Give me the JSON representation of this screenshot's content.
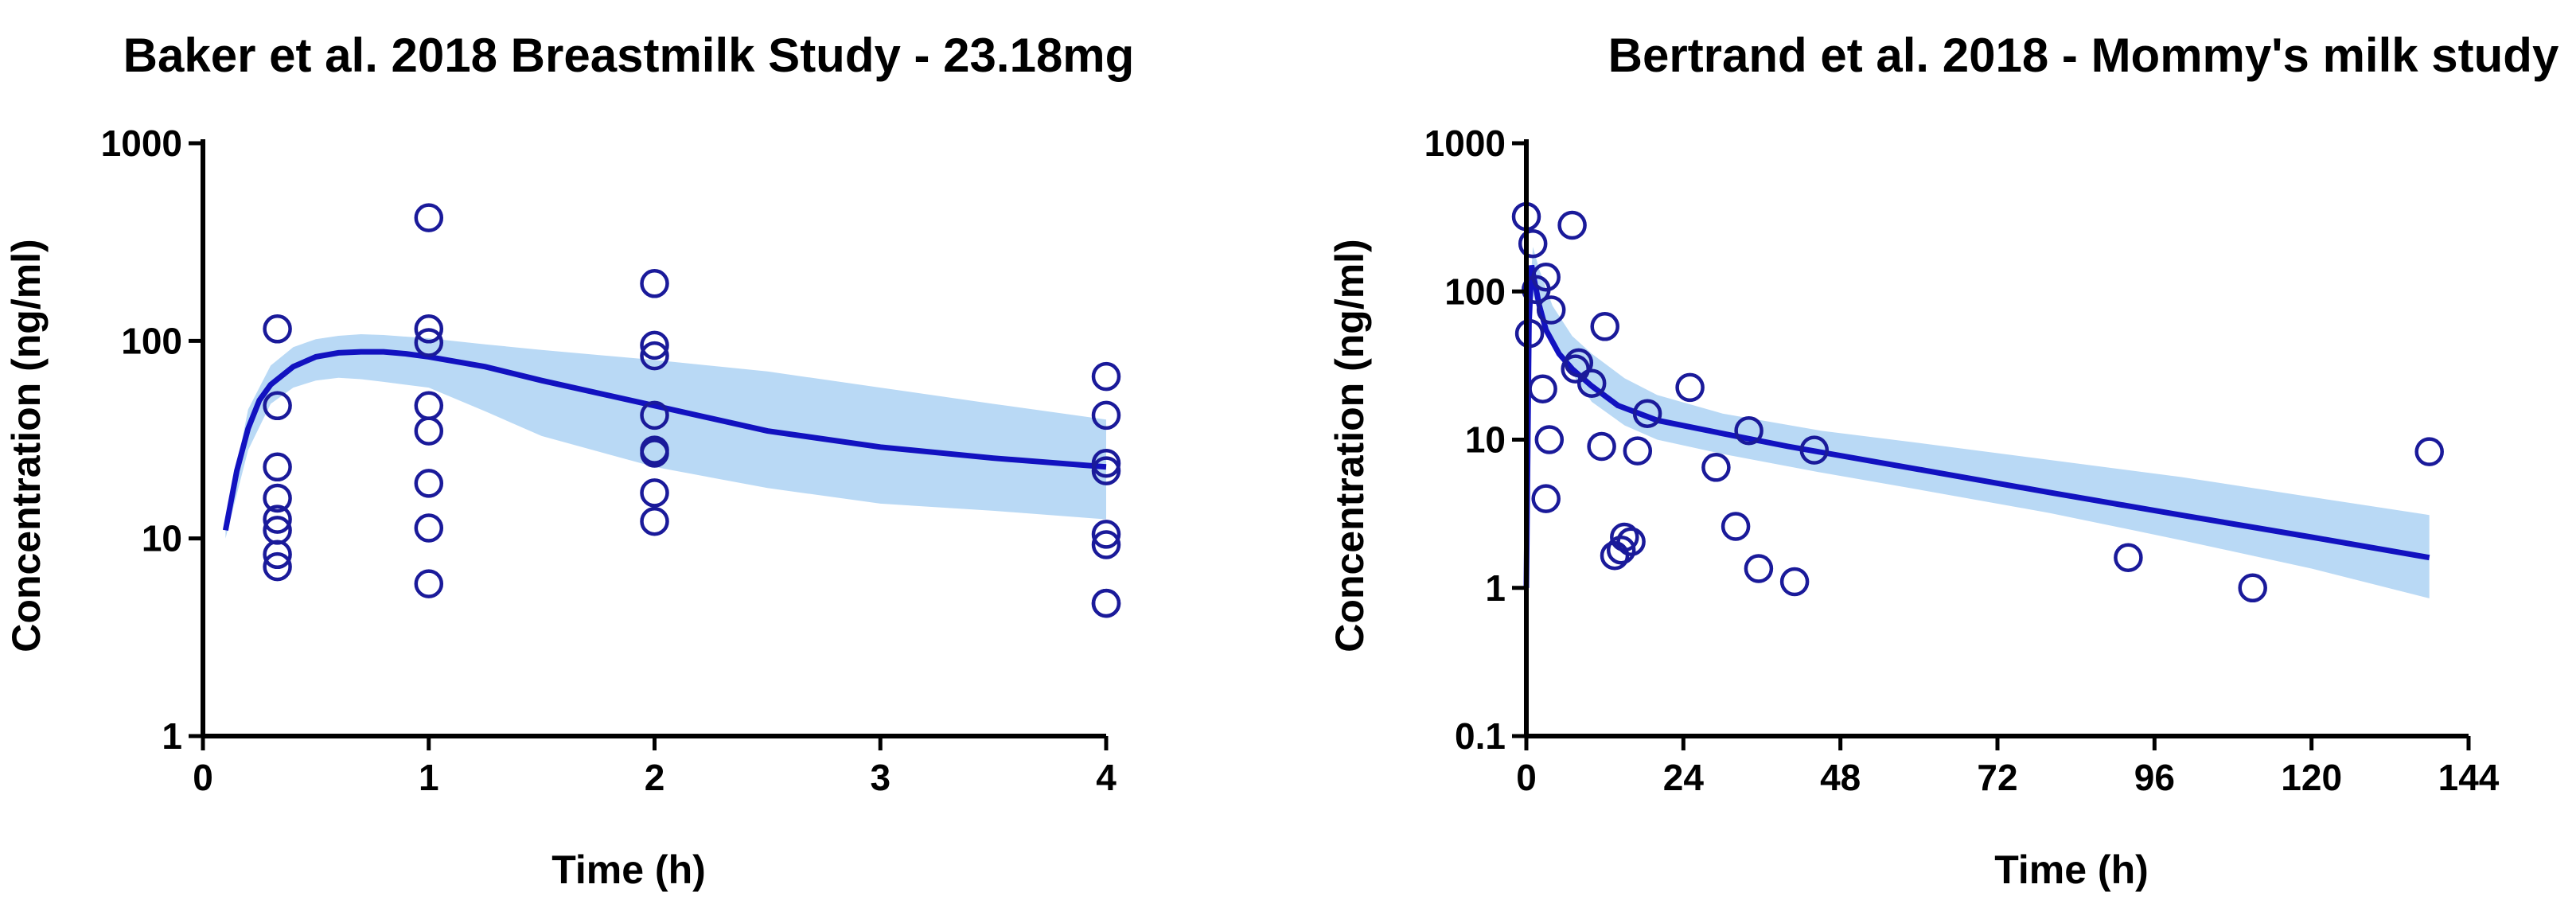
{
  "colors": {
    "band": "#b9d9f5",
    "median": "#1212c0",
    "observations": "#1a1a9a"
  },
  "chart_data": [
    {
      "type": "scatter",
      "title": "Baker et al. 2018 Breastmilk Study - 23.18mg",
      "xlabel": "Time (h)",
      "ylabel": "Concentration (ng/ml)",
      "xscale": "linear",
      "yscale": "log",
      "xlim": [
        0,
        4
      ],
      "ylim": [
        1,
        1000
      ],
      "xticks": [
        0,
        1,
        2,
        3,
        4
      ],
      "xtick_labels": [
        "0",
        "1",
        "2",
        "3",
        "4"
      ],
      "yticks": [
        1,
        10,
        100,
        1000
      ],
      "ytick_labels": [
        "1",
        "10",
        "100",
        "1000"
      ],
      "grid": false,
      "legend": "none",
      "observations": {
        "x": [
          0.33,
          0.33,
          0.33,
          0.33,
          0.33,
          0.33,
          0.33,
          0.33,
          1,
          1,
          1,
          1,
          1,
          1,
          1,
          1,
          2,
          2,
          2,
          2,
          2,
          2,
          2,
          2,
          4,
          4,
          4,
          4,
          4,
          4,
          4,
          4
        ],
        "y": [
          115,
          47,
          23,
          16,
          12.5,
          11,
          8.3,
          7.2,
          420,
          115,
          98,
          47,
          35,
          19,
          11.3,
          5.9,
          195,
          95,
          84,
          42,
          28,
          27,
          17,
          12.2,
          66,
          42,
          24,
          22,
          10.5,
          9.3,
          4.7,
          4.7
        ]
      },
      "median": {
        "x": [
          0.1,
          0.15,
          0.2,
          0.25,
          0.3,
          0.4,
          0.5,
          0.6,
          0.7,
          0.8,
          0.9,
          1,
          1.25,
          1.5,
          2,
          2.5,
          3,
          3.5,
          4
        ],
        "y": [
          11,
          22,
          36,
          50,
          60,
          74,
          83,
          87,
          88,
          88,
          86,
          83,
          74,
          63,
          47,
          35,
          29,
          25.5,
          23
        ]
      },
      "band_upper": {
        "x": [
          0.1,
          0.2,
          0.3,
          0.4,
          0.5,
          0.6,
          0.7,
          0.8,
          1,
          1.25,
          1.5,
          2,
          2.5,
          3,
          3.5,
          4
        ],
        "y": [
          12,
          45,
          75,
          93,
          102,
          106,
          108,
          107,
          103,
          96,
          90,
          80,
          70,
          58,
          48,
          40
        ]
      },
      "band_lower": {
        "x": [
          0.1,
          0.2,
          0.3,
          0.4,
          0.5,
          0.6,
          0.7,
          0.8,
          1,
          1.25,
          1.5,
          2,
          2.5,
          3,
          3.5,
          4
        ],
        "y": [
          10,
          28,
          48,
          58,
          63,
          65,
          64,
          62,
          58,
          44,
          33,
          23,
          18,
          15,
          13.8,
          12.5
        ]
      }
    },
    {
      "type": "scatter",
      "title": "Bertrand et al. 2018 - Mommy's milk study",
      "xlabel": "Time (h)",
      "ylabel": "Concentration (ng/ml)",
      "xscale": "linear",
      "yscale": "log",
      "xlim": [
        0,
        144
      ],
      "ylim": [
        0.1,
        1000
      ],
      "xticks": [
        0,
        24,
        48,
        72,
        96,
        120,
        144
      ],
      "xtick_labels": [
        "0",
        "24",
        "48",
        "72",
        "96",
        "120",
        "144"
      ],
      "yticks": [
        0.1,
        1,
        10,
        100,
        1000
      ],
      "ytick_labels": [
        "0.1",
        "1",
        "10",
        "100",
        "1000"
      ],
      "grid": false,
      "legend": "none",
      "observations": {
        "x": [
          0,
          1,
          1.5,
          0.5,
          2.5,
          3,
          3.8,
          3.5,
          3,
          7,
          7.5,
          8,
          10,
          12,
          11.5,
          13.5,
          15,
          14.5,
          16,
          17,
          18.5,
          25,
          29,
          32,
          34,
          35.5,
          41,
          44,
          92,
          111,
          138
        ],
        "y": [
          320,
          210,
          103,
          52,
          22,
          125,
          75,
          10,
          4,
          280,
          30,
          33,
          24,
          58,
          9,
          1.65,
          2.2,
          1.8,
          2.05,
          8.4,
          15,
          22.5,
          6.5,
          2.6,
          11.5,
          1.35,
          1.1,
          8.5,
          1.6,
          1,
          8.3
        ]
      },
      "median": {
        "x": [
          0,
          0.4,
          0.8,
          1.2,
          2,
          3,
          5,
          7,
          10,
          14,
          20,
          30,
          40,
          60,
          80,
          100,
          120,
          138
        ],
        "y": [
          1,
          60,
          150,
          120,
          80,
          55,
          38,
          30,
          23,
          17,
          13.5,
          11,
          9,
          6.3,
          4.4,
          3.1,
          2.2,
          1.6
        ]
      },
      "band_upper": {
        "x": [
          0,
          0.5,
          1,
          2,
          4,
          7,
          10,
          15,
          20,
          30,
          45,
          60,
          80,
          100,
          120,
          138
        ],
        "y": [
          1,
          90,
          200,
          140,
          80,
          50,
          38,
          26,
          20,
          15,
          11.5,
          9.5,
          7.3,
          5.6,
          4.1,
          3.1
        ]
      },
      "band_lower": {
        "x": [
          0,
          0.5,
          1,
          2,
          4,
          7,
          10,
          15,
          20,
          30,
          45,
          60,
          80,
          100,
          120,
          138
        ],
        "y": [
          1,
          40,
          95,
          70,
          45,
          28,
          18,
          12.5,
          10,
          8,
          6,
          4.6,
          3.2,
          2.1,
          1.35,
          0.85
        ]
      }
    }
  ]
}
